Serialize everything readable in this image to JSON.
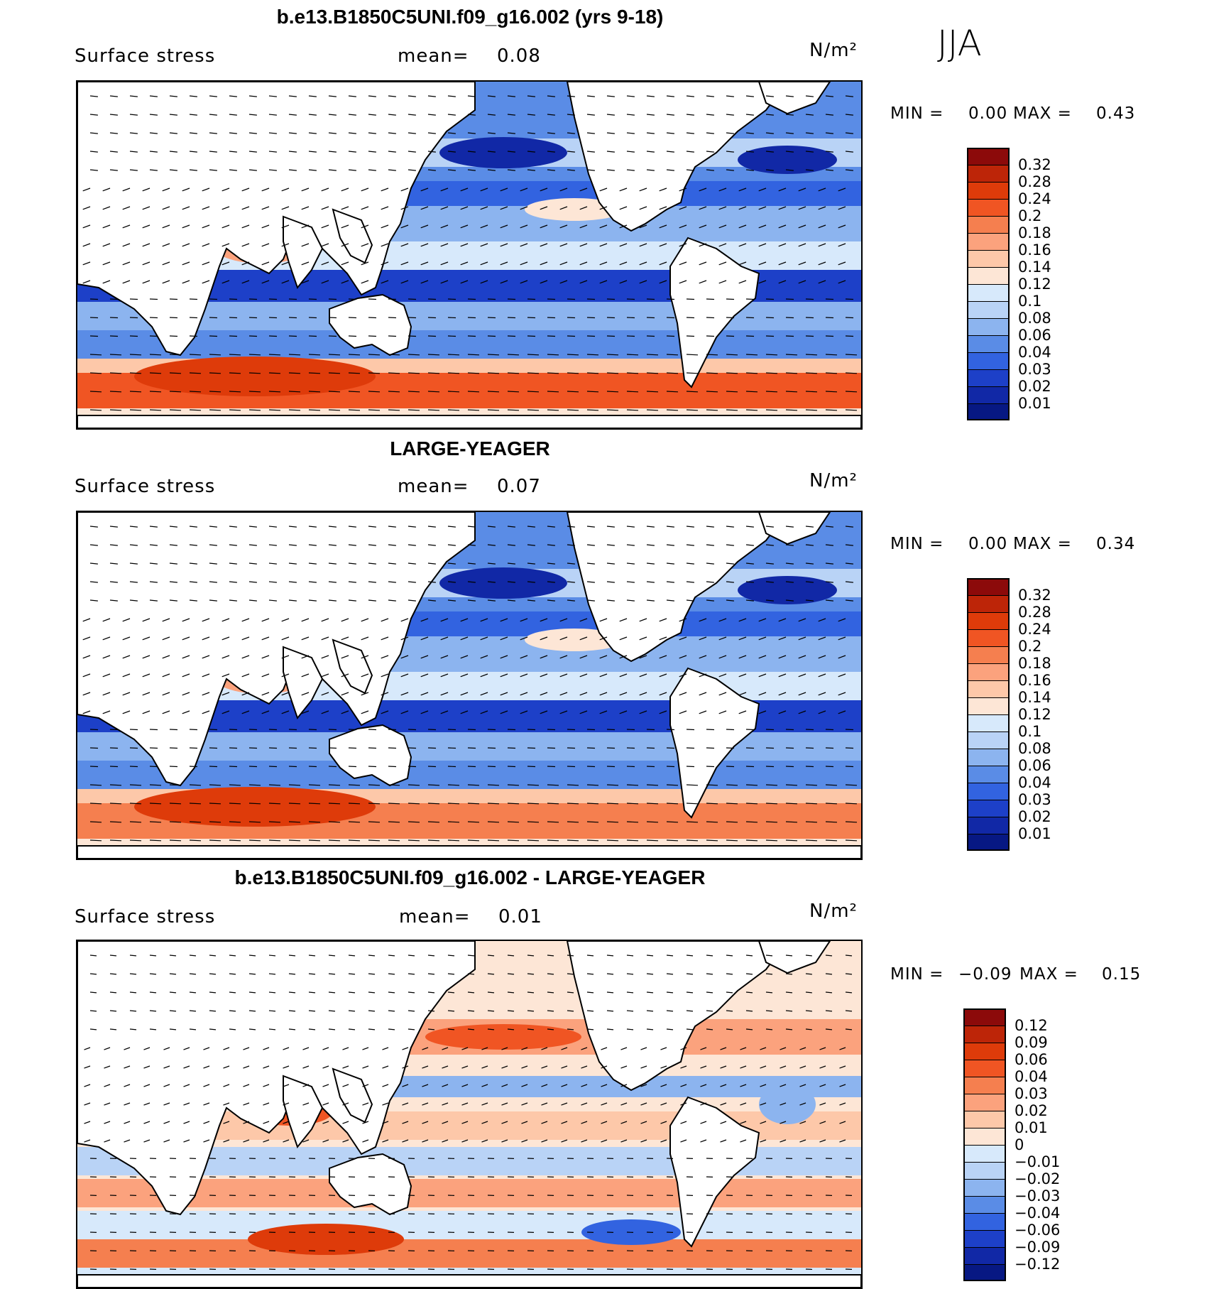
{
  "season": "JJA",
  "panels": [
    {
      "title": "b.e13.B1850C5UNI.f09_g16.002 (yrs 9-18)",
      "field": "Surface stress",
      "mean_label": "mean=",
      "mean": "0.08",
      "units": "N/m²",
      "min_label": "MIN =",
      "min": "0.00",
      "max_label": "MAX =",
      "max": "0.43",
      "colorbar": {
        "ticks": [
          "0.32",
          "0.28",
          "0.24",
          "0.2",
          "0.18",
          "0.16",
          "0.14",
          "0.12",
          "0.1",
          "0.08",
          "0.06",
          "0.04",
          "0.03",
          "0.02",
          "0.01"
        ],
        "colors": [
          "#8c0a0a",
          "#bd2508",
          "#de3b0a",
          "#f05523",
          "#f57f4f",
          "#fba27d",
          "#fdc8a9",
          "#fde6d6",
          "#d7e9fb",
          "#b9d3f6",
          "#8cb4ef",
          "#5a8ce6",
          "#3263e0",
          "#1d40c8",
          "#1128a6",
          "#071883"
        ]
      }
    },
    {
      "title": "LARGE-YEAGER",
      "field": "Surface stress",
      "mean_label": "mean=",
      "mean": "0.07",
      "units": "N/m²",
      "min_label": "MIN =",
      "min": "0.00",
      "max_label": "MAX =",
      "max": "0.34",
      "colorbar": {
        "ticks": [
          "0.32",
          "0.28",
          "0.24",
          "0.2",
          "0.18",
          "0.16",
          "0.14",
          "0.12",
          "0.1",
          "0.08",
          "0.06",
          "0.04",
          "0.03",
          "0.02",
          "0.01"
        ],
        "colors": [
          "#8c0a0a",
          "#bd2508",
          "#de3b0a",
          "#f05523",
          "#f57f4f",
          "#fba27d",
          "#fdc8a9",
          "#fde6d6",
          "#d7e9fb",
          "#b9d3f6",
          "#8cb4ef",
          "#5a8ce6",
          "#3263e0",
          "#1d40c8",
          "#1128a6",
          "#071883"
        ]
      }
    },
    {
      "title": "b.e13.B1850C5UNI.f09_g16.002 - LARGE-YEAGER",
      "field": "Surface stress",
      "mean_label": "mean=",
      "mean": "0.01",
      "units": "N/m²",
      "min_label": "MIN =",
      "min": "−0.09",
      "max_label": "MAX =",
      "max": "0.15",
      "colorbar": {
        "ticks": [
          "0.12",
          "0.09",
          "0.06",
          "0.04",
          "0.03",
          "0.02",
          "0.01",
          "0",
          "−0.01",
          "−0.02",
          "−0.03",
          "−0.04",
          "−0.06",
          "−0.09",
          "−0.12"
        ],
        "colors": [
          "#8c0a0a",
          "#bd2508",
          "#de3b0a",
          "#f05523",
          "#f57f4f",
          "#fba27d",
          "#fdc8a9",
          "#fde6d6",
          "#d7e9fb",
          "#b9d3f6",
          "#8cb4ef",
          "#5a8ce6",
          "#3263e0",
          "#1d40c8",
          "#1128a6",
          "#071883"
        ]
      }
    }
  ]
}
